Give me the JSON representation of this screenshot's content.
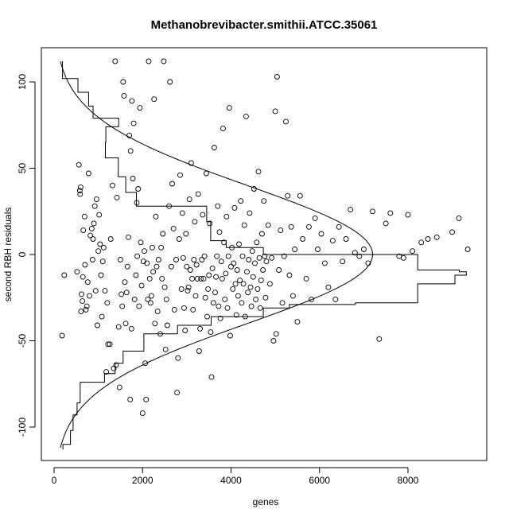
{
  "chart_data": {
    "type": "scatter",
    "title": "Methanobrevibacter.smithii.ATCC.35061",
    "xlabel": "genes",
    "ylabel": "second RBH residuals",
    "xlim": [
      0,
      9400
    ],
    "ylim": [
      -120,
      115
    ],
    "x_ticks": [
      0,
      2000,
      4000,
      6000,
      8000
    ],
    "y_ticks": [
      -100,
      -50,
      0,
      50,
      100
    ],
    "x_tick_labels": [
      "0",
      "2000",
      "4000",
      "6000",
      "8000"
    ],
    "y_tick_labels": [
      "-100",
      "-50",
      "0",
      "50",
      "100"
    ],
    "grid": false,
    "point_style": "open-circle",
    "points_note": "approximate sample of visible points",
    "points": [
      [
        180,
        -47
      ],
      [
        230,
        -12
      ],
      [
        520,
        -10
      ],
      [
        560,
        52
      ],
      [
        580,
        37
      ],
      [
        590,
        35
      ],
      [
        600,
        39
      ],
      [
        610,
        -33
      ],
      [
        620,
        -23
      ],
      [
        640,
        -27
      ],
      [
        650,
        -13
      ],
      [
        660,
        14
      ],
      [
        690,
        22
      ],
      [
        700,
        -6
      ],
      [
        720,
        -32
      ],
      [
        740,
        -30
      ],
      [
        760,
        -16
      ],
      [
        780,
        47
      ],
      [
        800,
        -24
      ],
      [
        820,
        11
      ],
      [
        850,
        15
      ],
      [
        870,
        -3
      ],
      [
        880,
        9
      ],
      [
        900,
        18
      ],
      [
        920,
        28
      ],
      [
        940,
        -21
      ],
      [
        960,
        32
      ],
      [
        980,
        -41
      ],
      [
        1000,
        2
      ],
      [
        1020,
        23
      ],
      [
        1040,
        6
      ],
      [
        1060,
        -12
      ],
      [
        1080,
        -36
      ],
      [
        1100,
        -4
      ],
      [
        1120,
        4
      ],
      [
        1150,
        -21
      ],
      [
        1180,
        -68
      ],
      [
        1200,
        -28
      ],
      [
        1220,
        -52
      ],
      [
        1260,
        -52
      ],
      [
        1280,
        9
      ],
      [
        1320,
        40
      ],
      [
        1350,
        -66
      ],
      [
        1380,
        112
      ],
      [
        1400,
        -64
      ],
      [
        1420,
        33
      ],
      [
        1460,
        -42
      ],
      [
        1480,
        -77
      ],
      [
        1500,
        -3
      ],
      [
        1520,
        -23
      ],
      [
        1540,
        -30
      ],
      [
        1560,
        100
      ],
      [
        1580,
        92
      ],
      [
        1600,
        -16
      ],
      [
        1620,
        -40
      ],
      [
        1640,
        -22
      ],
      [
        1660,
        -7
      ],
      [
        1680,
        10
      ],
      [
        1700,
        69
      ],
      [
        1720,
        -84
      ],
      [
        1730,
        60
      ],
      [
        1750,
        -43
      ],
      [
        1760,
        89
      ],
      [
        1780,
        44
      ],
      [
        1800,
        76
      ],
      [
        1820,
        -26
      ],
      [
        1850,
        -12
      ],
      [
        1870,
        30
      ],
      [
        1880,
        -1
      ],
      [
        1900,
        38
      ],
      [
        1920,
        -30
      ],
      [
        1940,
        85
      ],
      [
        1960,
        7
      ],
      [
        1980,
        -18
      ],
      [
        2000,
        -92
      ],
      [
        2020,
        -4
      ],
      [
        2040,
        2
      ],
      [
        2060,
        -63
      ],
      [
        2080,
        -84
      ],
      [
        2100,
        -5
      ],
      [
        2120,
        -26
      ],
      [
        2140,
        112
      ],
      [
        2160,
        -14
      ],
      [
        2180,
        -28
      ],
      [
        2200,
        -24
      ],
      [
        2220,
        4
      ],
      [
        2240,
        -10
      ],
      [
        2260,
        90
      ],
      [
        2280,
        -40
      ],
      [
        2300,
        22
      ],
      [
        2320,
        -7
      ],
      [
        2340,
        -33
      ],
      [
        2360,
        -3
      ],
      [
        2400,
        -46
      ],
      [
        2420,
        4
      ],
      [
        2440,
        -14
      ],
      [
        2460,
        12
      ],
      [
        2480,
        112
      ],
      [
        2500,
        -19
      ],
      [
        2520,
        -55
      ],
      [
        2540,
        -26
      ],
      [
        2560,
        -41
      ],
      [
        2600,
        28
      ],
      [
        2620,
        100
      ],
      [
        2650,
        -7
      ],
      [
        2670,
        41
      ],
      [
        2700,
        15
      ],
      [
        2720,
        -32
      ],
      [
        2760,
        -3
      ],
      [
        2780,
        -80
      ],
      [
        2800,
        -60
      ],
      [
        2830,
        9
      ],
      [
        2850,
        46
      ],
      [
        2880,
        -20
      ],
      [
        2900,
        24
      ],
      [
        2920,
        -2
      ],
      [
        2940,
        -31
      ],
      [
        2960,
        -44
      ],
      [
        2980,
        12
      ],
      [
        3000,
        -7
      ],
      [
        3020,
        -21
      ],
      [
        3040,
        -19
      ],
      [
        3060,
        32
      ],
      [
        3080,
        -9
      ],
      [
        3100,
        53
      ],
      [
        3120,
        -14
      ],
      [
        3140,
        -32
      ],
      [
        3160,
        -3
      ],
      [
        3180,
        19
      ],
      [
        3200,
        -24
      ],
      [
        3220,
        -6
      ],
      [
        3240,
        -14
      ],
      [
        3260,
        35
      ],
      [
        3280,
        -56
      ],
      [
        3300,
        -43
      ],
      [
        3320,
        -14
      ],
      [
        3340,
        -3
      ],
      [
        3360,
        23
      ],
      [
        3380,
        -14
      ],
      [
        3400,
        -1
      ],
      [
        3420,
        -25
      ],
      [
        3440,
        47
      ],
      [
        3460,
        -36
      ],
      [
        3480,
        -20
      ],
      [
        3500,
        -12
      ],
      [
        3520,
        18
      ],
      [
        3540,
        -45
      ],
      [
        3560,
        -71
      ],
      [
        3580,
        -8
      ],
      [
        3600,
        -28
      ],
      [
        3620,
        62
      ],
      [
        3640,
        -22
      ],
      [
        3660,
        -13
      ],
      [
        3680,
        -1
      ],
      [
        3700,
        28
      ],
      [
        3720,
        -30
      ],
      [
        3740,
        13
      ],
      [
        3760,
        -37
      ],
      [
        3780,
        -4
      ],
      [
        3800,
        -14
      ],
      [
        3820,
        73
      ],
      [
        3840,
        7
      ],
      [
        3860,
        -26
      ],
      [
        3880,
        -11
      ],
      [
        3900,
        22
      ],
      [
        3920,
        -31
      ],
      [
        3940,
        -1
      ],
      [
        3960,
        85
      ],
      [
        3980,
        -47
      ],
      [
        4000,
        -7
      ],
      [
        4020,
        4
      ],
      [
        4040,
        -20
      ],
      [
        4060,
        -5
      ],
      [
        4080,
        27
      ],
      [
        4100,
        -17
      ],
      [
        4120,
        -35
      ],
      [
        4140,
        -9
      ],
      [
        4160,
        -24
      ],
      [
        4180,
        6
      ],
      [
        4200,
        -15
      ],
      [
        4220,
        31
      ],
      [
        4240,
        -28
      ],
      [
        4260,
        -1
      ],
      [
        4280,
        -17
      ],
      [
        4300,
        17
      ],
      [
        4320,
        -36
      ],
      [
        4340,
        80
      ],
      [
        4360,
        -10
      ],
      [
        4380,
        -22
      ],
      [
        4400,
        -3
      ],
      [
        4420,
        24
      ],
      [
        4440,
        -19
      ],
      [
        4460,
        -30
      ],
      [
        4480,
        2
      ],
      [
        4500,
        -13
      ],
      [
        4520,
        38
      ],
      [
        4540,
        -5
      ],
      [
        4560,
        -26
      ],
      [
        4580,
        7
      ],
      [
        4600,
        -20
      ],
      [
        4620,
        48
      ],
      [
        4640,
        -2
      ],
      [
        4660,
        -31
      ],
      [
        4680,
        -15
      ],
      [
        4700,
        12
      ],
      [
        4720,
        -9
      ],
      [
        4740,
        31
      ],
      [
        4760,
        -1
      ],
      [
        4780,
        -25
      ],
      [
        4800,
        -4
      ],
      [
        4840,
        17
      ],
      [
        4880,
        -17
      ],
      [
        4920,
        -2
      ],
      [
        4960,
        -50
      ],
      [
        5000,
        83
      ],
      [
        5020,
        -46
      ],
      [
        5040,
        103
      ],
      [
        5080,
        -9
      ],
      [
        5120,
        14
      ],
      [
        5160,
        -28
      ],
      [
        5200,
        -1
      ],
      [
        5240,
        77
      ],
      [
        5280,
        34
      ],
      [
        5320,
        -12
      ],
      [
        5360,
        16
      ],
      [
        5400,
        -24
      ],
      [
        5440,
        3
      ],
      [
        5500,
        -39
      ],
      [
        5560,
        34
      ],
      [
        5620,
        9
      ],
      [
        5700,
        -14
      ],
      [
        5760,
        16
      ],
      [
        5820,
        -26
      ],
      [
        5900,
        21
      ],
      [
        5960,
        3
      ],
      [
        6040,
        12
      ],
      [
        6120,
        -5
      ],
      [
        6200,
        -19
      ],
      [
        6300,
        8
      ],
      [
        6360,
        -26
      ],
      [
        6440,
        16
      ],
      [
        6520,
        -4
      ],
      [
        6600,
        9
      ],
      [
        6700,
        26
      ],
      [
        6800,
        1
      ],
      [
        6900,
        -1
      ],
      [
        7000,
        3
      ],
      [
        7100,
        -5
      ],
      [
        7200,
        25
      ],
      [
        7350,
        -49
      ],
      [
        7500,
        18
      ],
      [
        7600,
        24
      ],
      [
        7800,
        -1
      ],
      [
        7900,
        -2
      ],
      [
        8000,
        23
      ],
      [
        8100,
        2
      ],
      [
        8300,
        7
      ],
      [
        8450,
        9
      ],
      [
        8650,
        10
      ],
      [
        9000,
        13
      ],
      [
        9150,
        21
      ],
      [
        9350,
        3
      ]
    ],
    "histogram_steps": [
      [
        200,
        -113
      ],
      [
        200,
        -110
      ],
      [
        370,
        -110
      ],
      [
        370,
        -102
      ],
      [
        430,
        -102
      ],
      [
        430,
        -93
      ],
      [
        520,
        -93
      ],
      [
        520,
        -86
      ],
      [
        590,
        -86
      ],
      [
        590,
        -74
      ],
      [
        1140,
        -74
      ],
      [
        1140,
        -69
      ],
      [
        1380,
        -69
      ],
      [
        1380,
        -63
      ],
      [
        1560,
        -63
      ],
      [
        1560,
        -56
      ],
      [
        2030,
        -56
      ],
      [
        2030,
        -46
      ],
      [
        2790,
        -46
      ],
      [
        2790,
        -41
      ],
      [
        3550,
        -41
      ],
      [
        3550,
        -36
      ],
      [
        4730,
        -36
      ],
      [
        4730,
        -31
      ],
      [
        5320,
        -31
      ],
      [
        5320,
        -29
      ],
      [
        6810,
        -29
      ],
      [
        6810,
        -28
      ],
      [
        8220,
        -28
      ],
      [
        8220,
        -17
      ],
      [
        9060,
        -17
      ],
      [
        9060,
        -12
      ],
      [
        9320,
        -12
      ],
      [
        9320,
        -10
      ],
      [
        9160,
        -10
      ],
      [
        9160,
        -9
      ],
      [
        8220,
        -9
      ],
      [
        8220,
        0
      ],
      [
        4730,
        0
      ],
      [
        4730,
        4
      ],
      [
        3890,
        4
      ],
      [
        3890,
        8
      ],
      [
        3540,
        8
      ],
      [
        3540,
        14
      ],
      [
        3540,
        19
      ],
      [
        3450,
        19
      ],
      [
        3450,
        28
      ],
      [
        1860,
        28
      ],
      [
        1860,
        36
      ],
      [
        1620,
        36
      ],
      [
        1620,
        45
      ],
      [
        1450,
        45
      ],
      [
        1450,
        56
      ],
      [
        1160,
        56
      ],
      [
        1160,
        65
      ],
      [
        1170,
        65
      ],
      [
        1170,
        74
      ],
      [
        1460,
        74
      ],
      [
        1460,
        79
      ],
      [
        880,
        79
      ],
      [
        880,
        86
      ],
      [
        780,
        86
      ],
      [
        780,
        94
      ],
      [
        540,
        94
      ],
      [
        540,
        102
      ],
      [
        190,
        102
      ],
      [
        190,
        112
      ]
    ],
    "normal_curve": {
      "mean": 0,
      "sd": 40,
      "peak_x": 7200,
      "baseline_x": 0,
      "y_range": [
        -112,
        112
      ]
    }
  }
}
